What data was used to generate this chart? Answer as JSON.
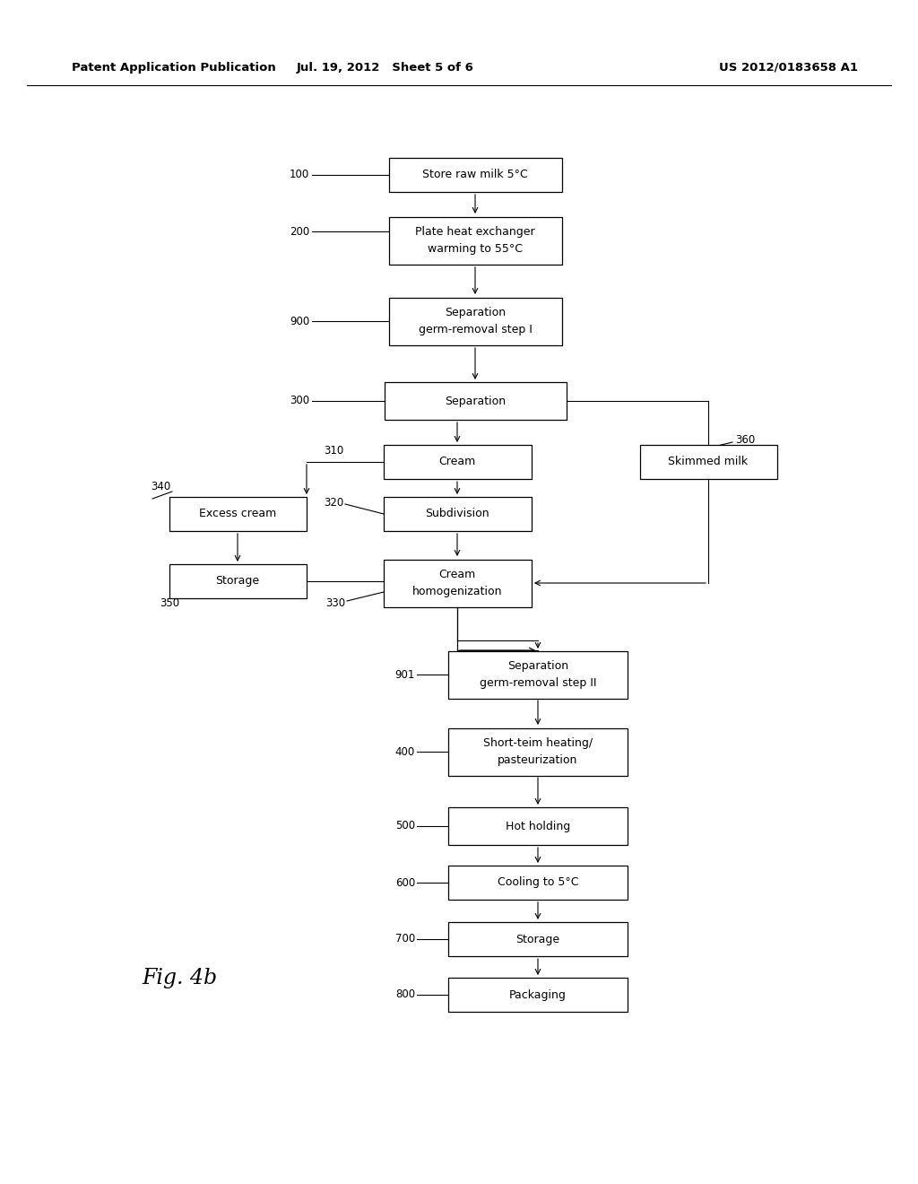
{
  "header_left": "Patent Application Publication",
  "header_mid": "Jul. 19, 2012   Sheet 5 of 6",
  "header_right": "US 2012/0183658 A1",
  "figure_label": "Fig. 4b",
  "bg_color": "#ffffff"
}
